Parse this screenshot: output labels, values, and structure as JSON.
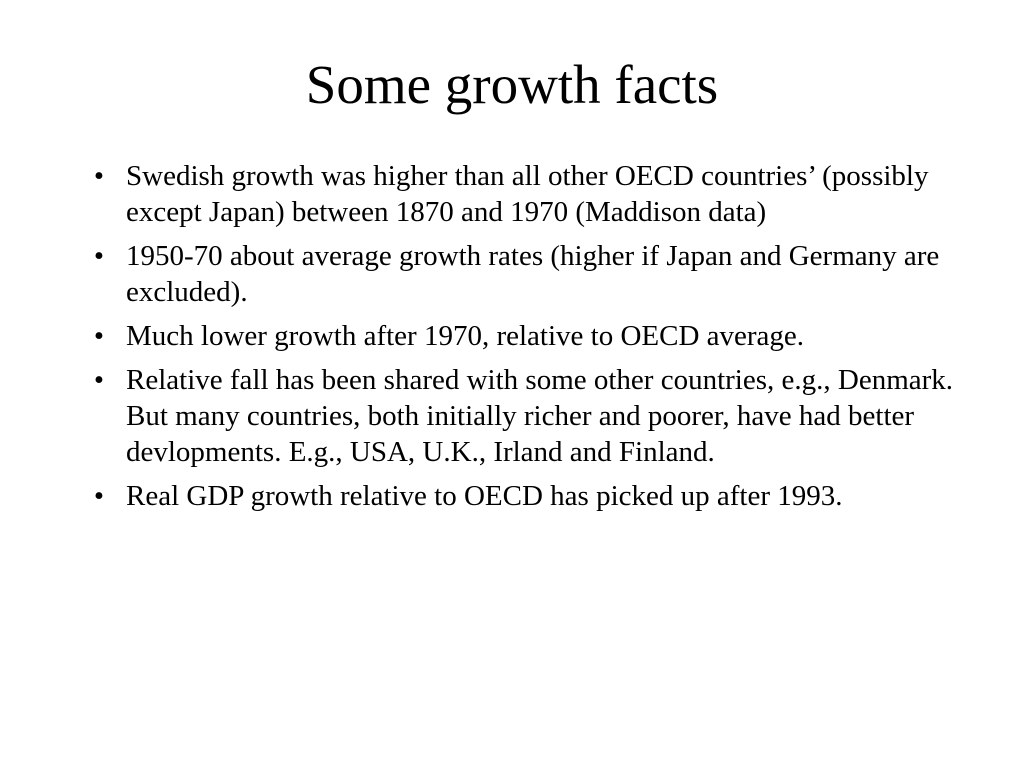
{
  "slide": {
    "title": "Some growth facts",
    "bullet_glyph": "•",
    "bullets": [
      "Swedish growth was higher than all other OECD countries’ (possibly except Japan) between 1870 and 1970 (Maddison data)",
      "1950-70 about average growth rates (higher if Japan and Germany are excluded).",
      "Much lower growth after 1970, relative to OECD average.",
      "Relative fall has been shared with some other countries, e.g., Denmark. But many countries, both initially richer and poorer, have had better devlopments. E.g., USA, U.K., Irland and Finland.",
      "Real GDP growth relative to OECD has picked up after 1993."
    ]
  }
}
